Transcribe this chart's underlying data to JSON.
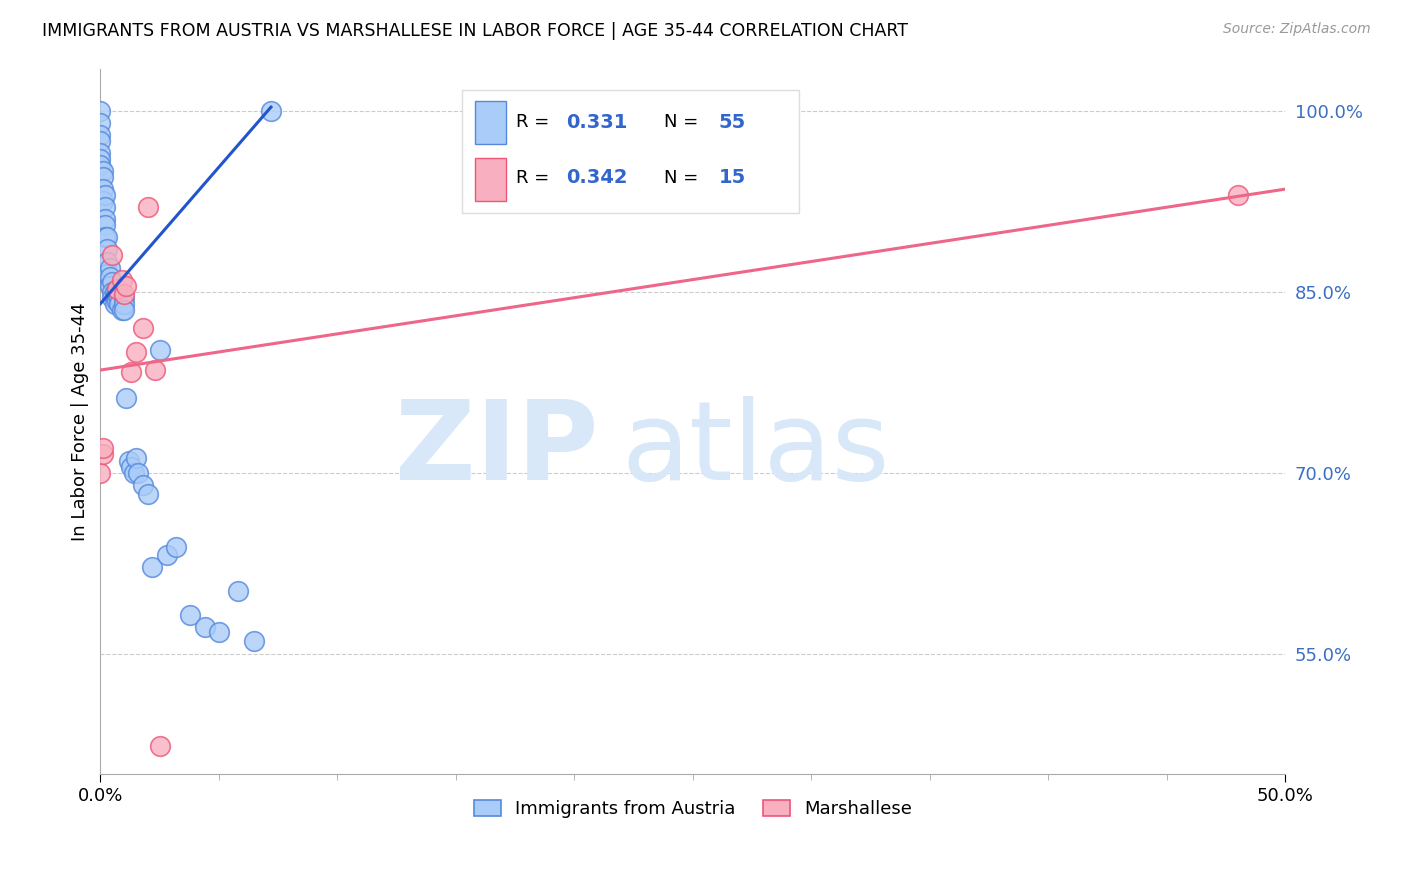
{
  "title": "IMMIGRANTS FROM AUSTRIA VS MARSHALLESE IN LABOR FORCE | AGE 35-44 CORRELATION CHART",
  "source": "Source: ZipAtlas.com",
  "ylabel": "In Labor Force | Age 35-44",
  "xlim": [
    0.0,
    0.5
  ],
  "ylim": [
    0.45,
    1.035
  ],
  "ytick_vals": [
    0.55,
    0.7,
    0.85,
    1.0
  ],
  "ytick_labels": [
    "55.0%",
    "70.0%",
    "85.0%",
    "100.0%"
  ],
  "grid_color": "#cccccc",
  "background_color": "#ffffff",
  "austria_color": "#aaccf8",
  "austria_edge_color": "#5588dd",
  "marshallese_color": "#f8b0c0",
  "marshallese_edge_color": "#ee5577",
  "austria_R": "0.331",
  "austria_N": "55",
  "marshallese_R": "0.342",
  "marshallese_N": "15",
  "austria_line_color": "#2255cc",
  "marshallese_line_color": "#ee6688",
  "legend_R_color": "#3366cc",
  "legend_N_color": "#3366cc",
  "austria_x": [
    0.0,
    0.0,
    0.0,
    0.0,
    0.0,
    0.0,
    0.0,
    0.001,
    0.001,
    0.001,
    0.001,
    0.002,
    0.002,
    0.002,
    0.002,
    0.002,
    0.003,
    0.003,
    0.003,
    0.003,
    0.004,
    0.004,
    0.004,
    0.005,
    0.005,
    0.005,
    0.006,
    0.006,
    0.006,
    0.007,
    0.007,
    0.008,
    0.008,
    0.009,
    0.01,
    0.01,
    0.01,
    0.011,
    0.012,
    0.013,
    0.014,
    0.015,
    0.016,
    0.018,
    0.02,
    0.022,
    0.025,
    0.028,
    0.032,
    0.038,
    0.044,
    0.05,
    0.058,
    0.065,
    0.072
  ],
  "austria_y": [
    1.0,
    0.99,
    0.98,
    0.975,
    0.965,
    0.96,
    0.955,
    0.95,
    0.945,
    0.935,
    0.925,
    0.93,
    0.92,
    0.91,
    0.905,
    0.895,
    0.895,
    0.885,
    0.875,
    0.865,
    0.87,
    0.862,
    0.855,
    0.858,
    0.85,
    0.845,
    0.85,
    0.845,
    0.84,
    0.848,
    0.842,
    0.845,
    0.84,
    0.835,
    0.845,
    0.84,
    0.835,
    0.762,
    0.71,
    0.705,
    0.7,
    0.712,
    0.7,
    0.69,
    0.682,
    0.622,
    0.802,
    0.632,
    0.638,
    0.582,
    0.572,
    0.568,
    0.602,
    0.56,
    1.0
  ],
  "marshallese_x": [
    0.0,
    0.001,
    0.001,
    0.005,
    0.007,
    0.009,
    0.01,
    0.011,
    0.013,
    0.015,
    0.018,
    0.02,
    0.023,
    0.025,
    0.48
  ],
  "marshallese_y": [
    0.7,
    0.715,
    0.72,
    0.88,
    0.852,
    0.86,
    0.848,
    0.855,
    0.783,
    0.8,
    0.82,
    0.92,
    0.785,
    0.473,
    0.93
  ],
  "austria_line_x0": 0.0,
  "austria_line_y0": 0.84,
  "austria_line_x1": 0.072,
  "austria_line_y1": 1.003,
  "marshallese_line_x0": 0.0,
  "marshallese_line_y0": 0.785,
  "marshallese_line_x1": 0.5,
  "marshallese_line_y1": 0.935
}
